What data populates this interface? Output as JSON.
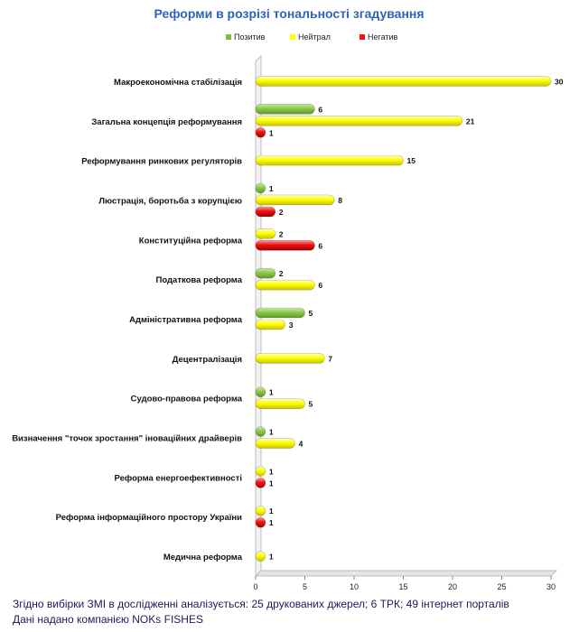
{
  "chart_data": {
    "type": "bar",
    "orientation": "horizontal",
    "title": "Реформи в розрізі тональності згадування",
    "categories": [
      "Макроекономічна стабілізація",
      "Загальна концепція реформування",
      "Реформування ринкових регуляторів",
      "Люстрація, боротьба з корупцією",
      "Конституційна реформа",
      "Податкова реформа",
      "Адміністративна реформа",
      "Децентралізація",
      "Судово-правова реформа",
      "Визначення \"точок зростання\"   іноваційних драйверів",
      "Реформа енергоефективності",
      "Реформа інформаційного простору України",
      "Медична реформа"
    ],
    "series": [
      {
        "name": "Позитив",
        "color": "#7cc043",
        "values": [
          null,
          6,
          null,
          1,
          null,
          2,
          5,
          null,
          1,
          1,
          null,
          null,
          null
        ]
      },
      {
        "name": "Нейтрал",
        "color": "#ffff00",
        "values": [
          30,
          21,
          15,
          8,
          2,
          6,
          3,
          7,
          5,
          4,
          1,
          1,
          1
        ]
      },
      {
        "name": "Негатив",
        "color": "#ee1111",
        "values": [
          null,
          1,
          null,
          2,
          6,
          null,
          null,
          null,
          null,
          null,
          1,
          1,
          null
        ]
      }
    ],
    "xlim": [
      0,
      30
    ],
    "xticks": [
      "0",
      "5",
      "10",
      "15",
      "20",
      "25",
      "30"
    ],
    "legend_position": "top",
    "grid": false
  },
  "footer": {
    "line1": "Згідно вибірки ЗМІ в дослідженні аналізується: 25 друкованих джерел; 6 ТРК; 49 інтернет порталів",
    "line2": "Дані надано компанією NOKs FISHES"
  }
}
